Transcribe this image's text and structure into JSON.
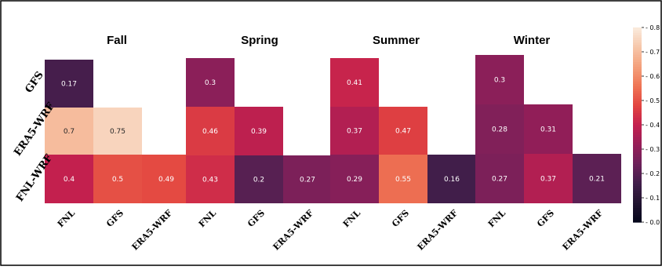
{
  "chart_data": {
    "type": "heatmap",
    "colorbar": {
      "min": 0.0,
      "max": 0.8,
      "ticks": [
        "0.0",
        "0.1",
        "0.2",
        "0.3",
        "0.4",
        "0.5",
        "0.6",
        "0.7",
        "0.8"
      ]
    },
    "colormap": "rocket",
    "panels": [
      {
        "title": "Fall",
        "rows": [
          "GFS",
          "ERA5-WRF",
          "FNL-WRF"
        ],
        "cols": [
          "FNL",
          "GFS",
          "ERA5-WRF"
        ],
        "values": [
          [
            0.17,
            null,
            null
          ],
          [
            0.7,
            0.75,
            null
          ],
          [
            0.4,
            0.5,
            0.49
          ]
        ]
      },
      {
        "title": "Spring",
        "rows": [
          "GFS",
          "ERA5-WRF",
          "FNL-WRF"
        ],
        "cols": [
          "FNL",
          "GFS",
          "ERA5-WRF"
        ],
        "values": [
          [
            0.3,
            null,
            null
          ],
          [
            0.46,
            0.39,
            null
          ],
          [
            0.43,
            0.2,
            0.27
          ]
        ]
      },
      {
        "title": "Summer",
        "rows": [
          "GFS",
          "ERA5-WRF",
          "FNL-WRF"
        ],
        "cols": [
          "FNL",
          "GFS",
          "ERA5-WRF"
        ],
        "values": [
          [
            0.41,
            null,
            null
          ],
          [
            0.37,
            0.47,
            null
          ],
          [
            0.29,
            0.55,
            0.16
          ]
        ]
      },
      {
        "title": "Winter",
        "rows": [
          "GFS",
          "ERA5-WRF",
          "FNL-WRF"
        ],
        "cols": [
          "FNL",
          "GFS",
          "ERA5-WRF"
        ],
        "values": [
          [
            0.3,
            null,
            null
          ],
          [
            0.28,
            0.31,
            null
          ],
          [
            0.27,
            0.37,
            0.21
          ]
        ]
      }
    ]
  }
}
